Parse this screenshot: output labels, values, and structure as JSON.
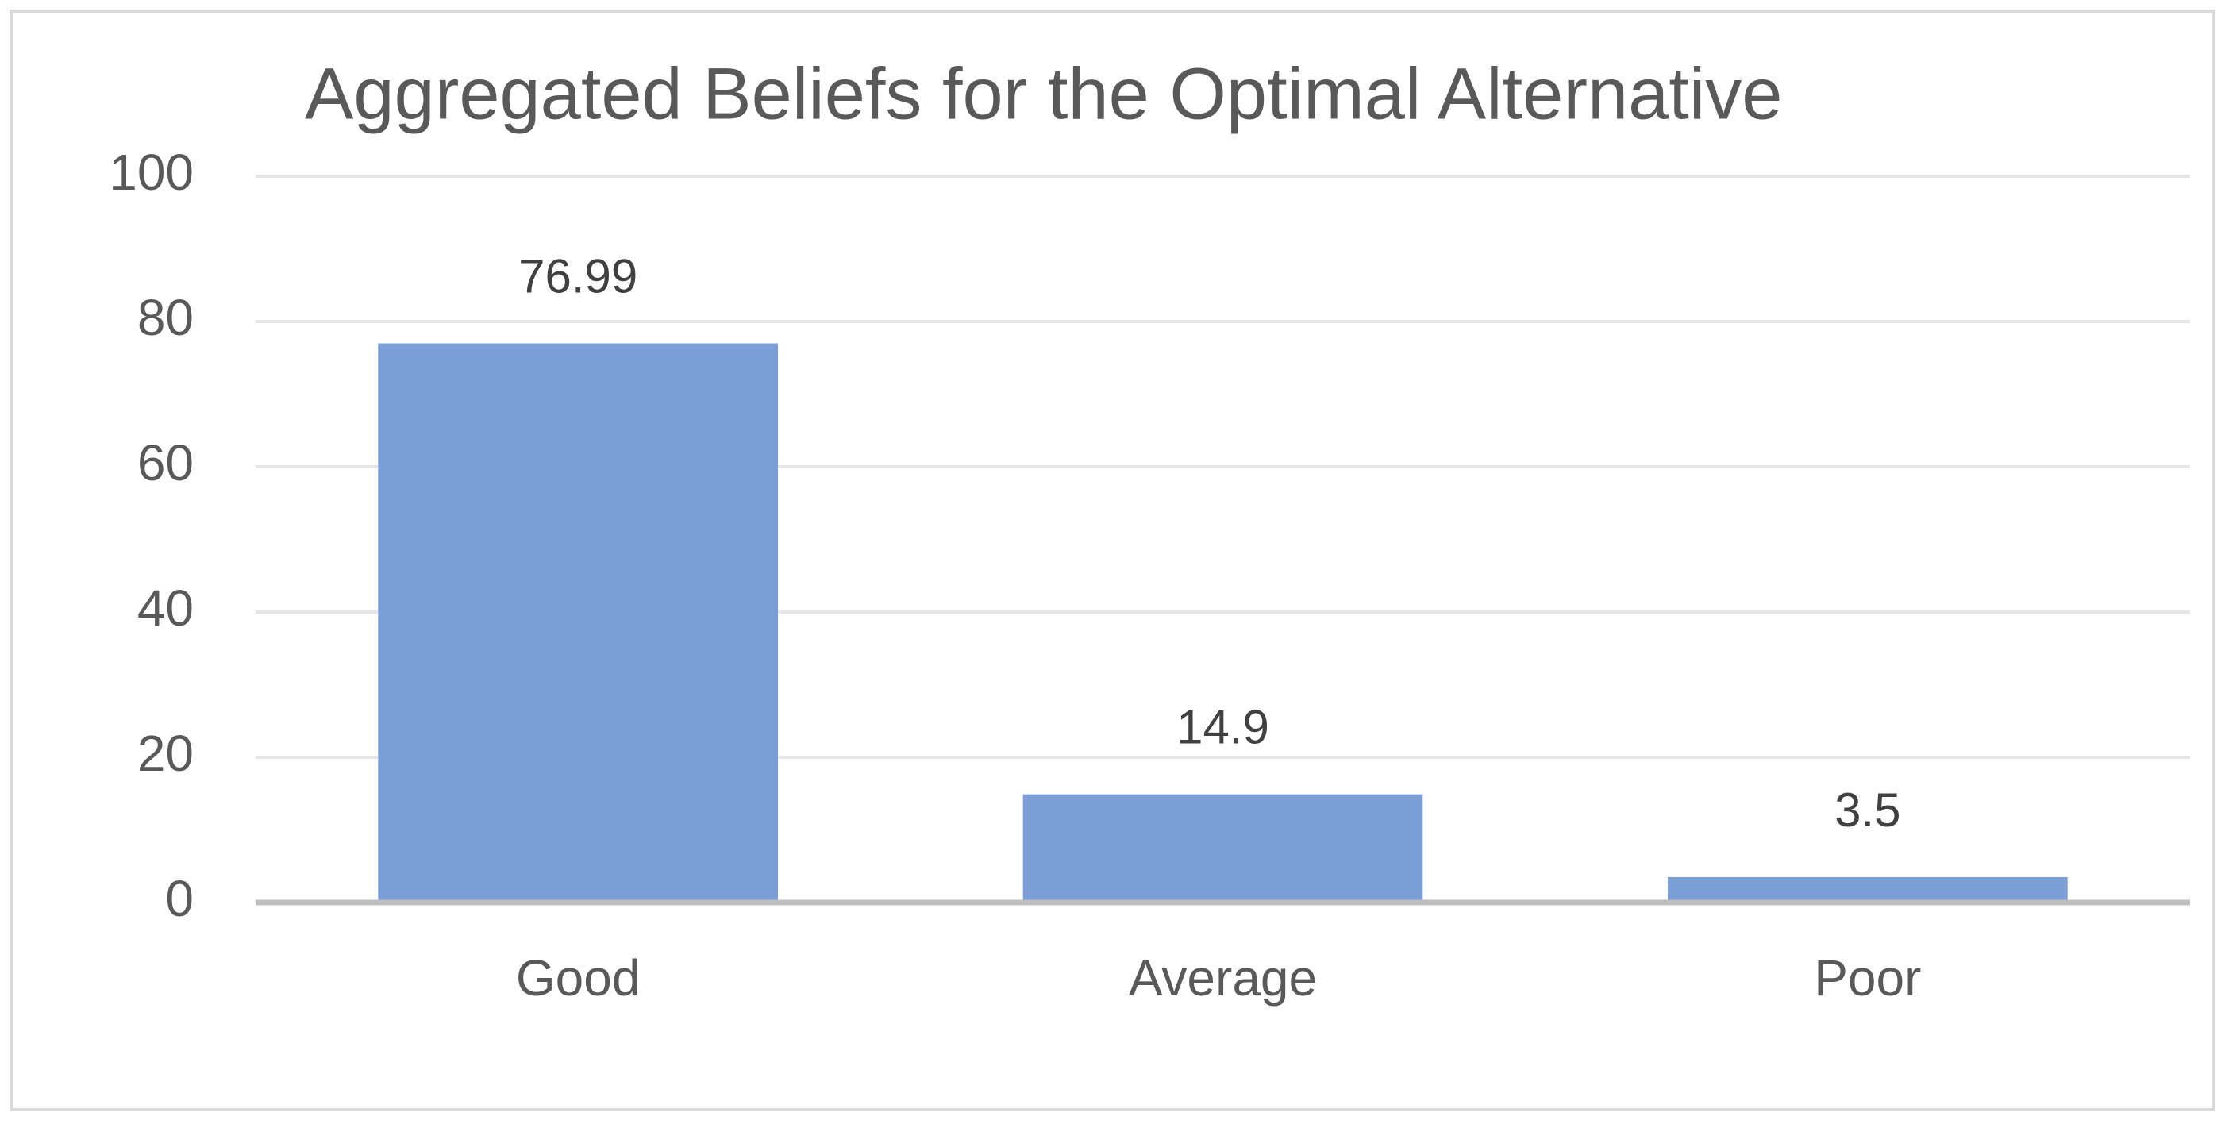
{
  "chart_data": {
    "type": "bar",
    "title": "Aggregated Beliefs for the Optimal Alternative",
    "categories": [
      "Good",
      "Average",
      "Poor"
    ],
    "values": [
      76.99,
      14.9,
      3.5
    ],
    "color": "#7b9ed6",
    "ylim": [
      0,
      100
    ],
    "yticks": [
      0,
      20,
      40,
      60,
      80,
      100
    ],
    "grid": true
  }
}
